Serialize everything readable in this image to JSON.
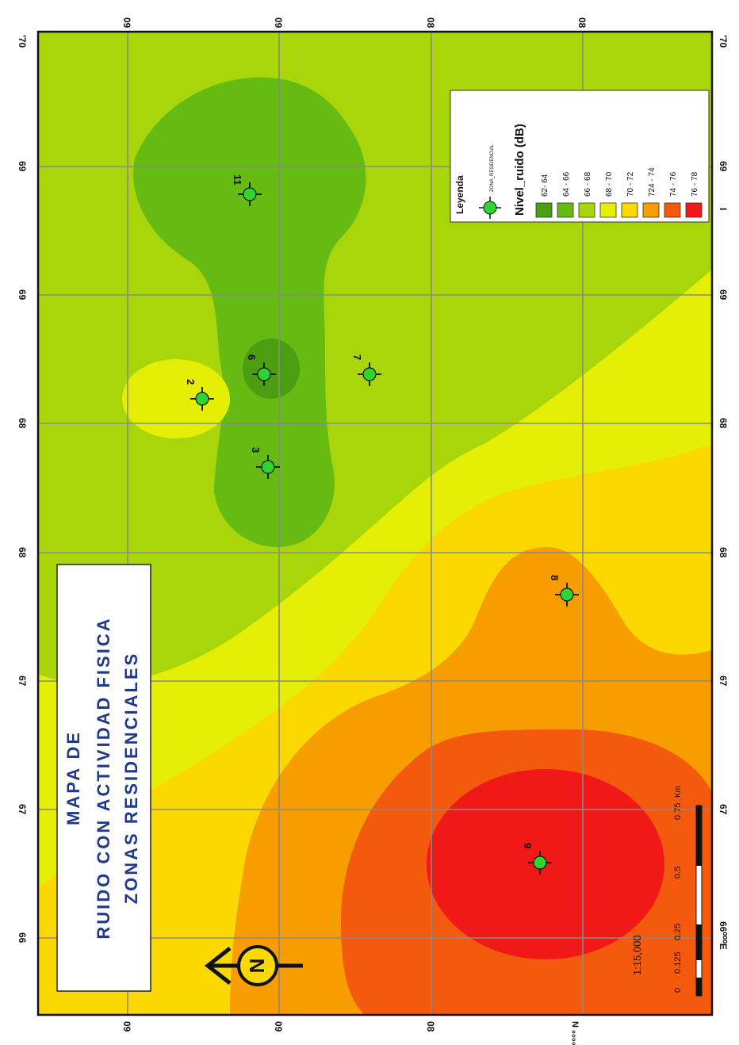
{
  "title": {
    "line1": "MAPA DE",
    "line2": "RUIDO CON ACTIVIDAD FISICA",
    "line3": "ZONAS RESIDENCIALES"
  },
  "top_ticks": [
    "09",
    "09",
    "08",
    "08"
  ],
  "bottom_ticks": [
    "09",
    "09",
    "08",
    "N ₀₀₀₀80₀"
  ],
  "left_ticks": [
    "66",
    "67",
    "67",
    "68",
    "68",
    "69",
    "69",
    "'70"
  ],
  "right_ticks": [
    "66⁰⁰⁰E",
    "67",
    "67",
    "68",
    "68",
    "69",
    "69",
    "'70"
  ],
  "right_extra": "I",
  "points": [
    {
      "id": "2"
    },
    {
      "id": "3"
    },
    {
      "id": "6"
    },
    {
      "id": "7"
    },
    {
      "id": "8"
    },
    {
      "id": "9"
    },
    {
      "id": "11"
    }
  ],
  "legend": {
    "title": "Leyenda",
    "symbol_label": "ZONA_RESIDENCIAL",
    "field_title": "Nivel_ruido (dB)",
    "classes": [
      {
        "label": "62- 64",
        "color": "#4a9e0f"
      },
      {
        "label": "64 - 66",
        "color": "#66bb12"
      },
      {
        "label": "66 - 68",
        "color": "#a8d60b"
      },
      {
        "label": "68 - 70",
        "color": "#e4ef05"
      },
      {
        "label": "70 - 72",
        "color": "#fbd800"
      },
      {
        "label": "724 - 74",
        "color": "#f79d00"
      },
      {
        "label": "74 - 76",
        "color": "#f35a0e"
      },
      {
        "label": "76 - 78",
        "color": "#f11818"
      }
    ]
  },
  "scale": {
    "ratio": "1:15,000",
    "ticks": [
      "0",
      "0.125",
      "0.25",
      "0.5",
      "0.75"
    ],
    "unit": "Km"
  },
  "north_label": "N",
  "colors": {
    "grid": "#8a8a8a",
    "frame": "#111111",
    "point": "#2fd52f",
    "title_text": "#1f3a8c"
  }
}
